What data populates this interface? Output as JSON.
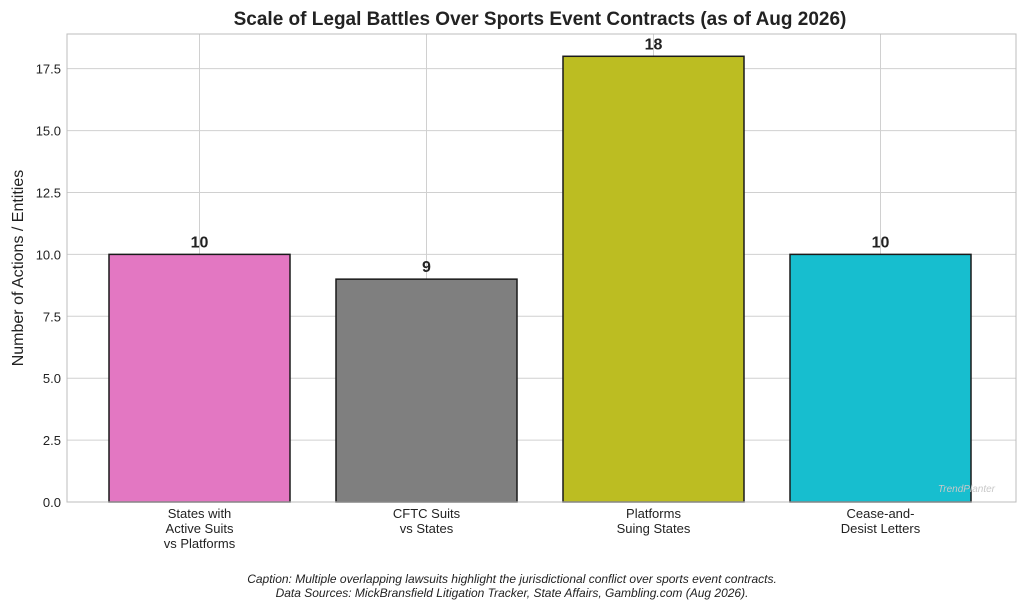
{
  "chart_data": {
    "type": "bar",
    "title": "Scale of Legal Battles Over Sports Event Contracts (as of Aug 2026)",
    "xlabel": "",
    "ylabel": "Number of Actions / Entities",
    "categories": [
      [
        "States with",
        "Active Suits",
        "vs Platforms"
      ],
      [
        "CFTC Suits",
        "vs States"
      ],
      [
        "Platforms",
        "Suing States"
      ],
      [
        "Cease-and-",
        "Desist Letters"
      ]
    ],
    "values": [
      10,
      9,
      18,
      10
    ],
    "data_labels": [
      "10",
      "9",
      "18",
      "10"
    ],
    "colors": [
      "#e377c2",
      "#7f7f7f",
      "#bcbd22",
      "#17becf"
    ],
    "ylim": [
      0,
      18.9
    ],
    "yticks": [
      0.0,
      2.5,
      5.0,
      7.5,
      10.0,
      12.5,
      15.0,
      17.5
    ],
    "ytick_labels": [
      "0.0",
      "2.5",
      "5.0",
      "7.5",
      "10.0",
      "12.5",
      "15.0",
      "17.5"
    ],
    "grid": true,
    "legend": "none",
    "watermark": "TrendPlanter"
  },
  "caption": {
    "line1": "Caption: Multiple overlapping lawsuits highlight the jurisdictional conflict over sports event contracts.",
    "line2": "Data Sources: MickBransfield Litigation Tracker, State Affairs, Gambling.com (Aug 2026)."
  }
}
